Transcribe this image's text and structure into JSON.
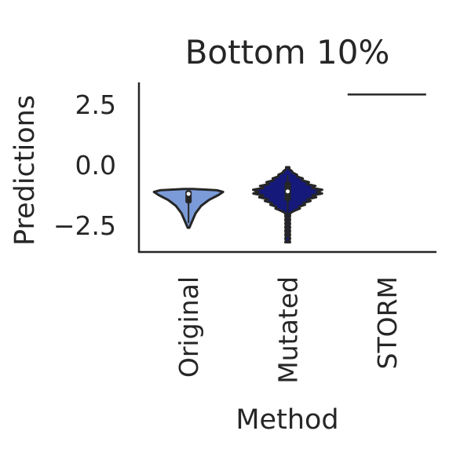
{
  "chart_data": {
    "type": "violin",
    "title": "Bottom 10%",
    "xlabel": "Method",
    "ylabel": "Predictions",
    "categories": [
      "Original",
      "Mutated",
      "STORM"
    ],
    "yticks": [
      2.5,
      0.0,
      -2.5
    ],
    "ytick_labels": [
      "2.5",
      "0.0",
      "−2.5"
    ],
    "ylim": [
      -3.6,
      3.4
    ],
    "grid": false,
    "series": [
      {
        "category": "Original",
        "min": -2.6,
        "max": -1.0,
        "median": -1.2,
        "q1": -1.6,
        "q3": -1.05,
        "color": "#7b9bd8"
      },
      {
        "category": "Mutated",
        "min": -3.2,
        "max": -0.1,
        "median": -1.1,
        "q1": -1.5,
        "q3": -0.7,
        "color": "#14197a"
      },
      {
        "category": "STORM",
        "min": 2.9,
        "max": 2.9,
        "median": 2.9,
        "color": "#262626"
      }
    ]
  }
}
